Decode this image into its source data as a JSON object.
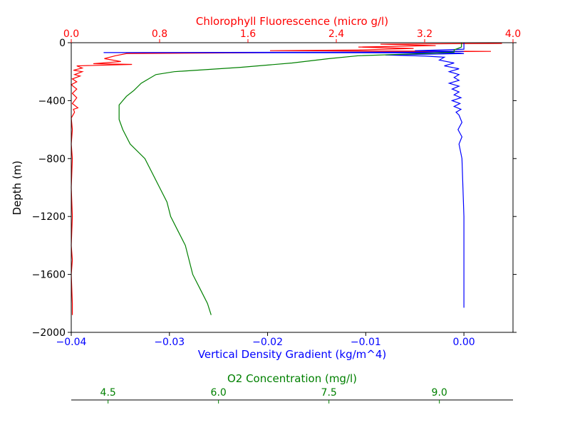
{
  "chart_data": {
    "type": "line",
    "y_axis": {
      "label": "Depth (m)",
      "ylim": [
        -2000,
        0
      ],
      "ticks": [
        0,
        -400,
        -800,
        -1200,
        -1600,
        -2000
      ],
      "tick_labels": [
        "0",
        "−400",
        "−800",
        "−1200",
        "−1600",
        "−2000"
      ]
    },
    "x_axes": [
      {
        "id": "density",
        "position": "bottom",
        "label": "Vertical Density Gradient (kg/m^4)",
        "color": "#0000ff",
        "xlim": [
          -0.04,
          0.005
        ],
        "ticks": [
          -0.04,
          -0.03,
          -0.02,
          -0.01,
          0.0
        ],
        "tick_labels": [
          "−0.04",
          "−0.03",
          "−0.02",
          "−0.01",
          "0.00"
        ]
      },
      {
        "id": "chl",
        "position": "top",
        "label": "Chlorophyll Fluorescence (micro g/l)",
        "color": "#ff0000",
        "xlim": [
          0.0,
          4.0
        ],
        "ticks": [
          0.0,
          0.8,
          1.6,
          2.4,
          3.2,
          4.0
        ],
        "tick_labels": [
          "0.0",
          "0.8",
          "1.6",
          "2.4",
          "3.2",
          "4.0"
        ]
      },
      {
        "id": "o2",
        "position": "offset-bottom",
        "label": "O2 Concentration (mg/l)",
        "color": "#008000",
        "xlim": [
          4.0,
          10.0
        ],
        "ticks": [
          4.5,
          6.0,
          7.5,
          9.0
        ],
        "tick_labels": [
          "4.5",
          "6.0",
          "7.5",
          "9.0"
        ]
      }
    ],
    "series": [
      {
        "axis": "chl",
        "color": "#ff0000",
        "points": [
          [
            3.9,
            -5
          ],
          [
            2.8,
            -10
          ],
          [
            3.3,
            -20
          ],
          [
            2.6,
            -30
          ],
          [
            3.1,
            -40
          ],
          [
            2.6,
            -50
          ],
          [
            1.8,
            -55
          ],
          [
            3.8,
            -60
          ],
          [
            0.5,
            -75
          ],
          [
            0.4,
            -90
          ],
          [
            0.3,
            -110
          ],
          [
            0.45,
            -130
          ],
          [
            0.2,
            -145
          ],
          [
            0.55,
            -150
          ],
          [
            0.05,
            -160
          ],
          [
            0.1,
            -175
          ],
          [
            0.02,
            -190
          ],
          [
            0.1,
            -200
          ],
          [
            0.03,
            -220
          ],
          [
            0.08,
            -230
          ],
          [
            0.01,
            -250
          ],
          [
            0.05,
            -270
          ],
          [
            0.0,
            -290
          ],
          [
            0.05,
            -320
          ],
          [
            0.01,
            -350
          ],
          [
            0.05,
            -380
          ],
          [
            0.01,
            -420
          ],
          [
            0.06,
            -450
          ],
          [
            0.02,
            -460
          ],
          [
            0.03,
            -480
          ],
          [
            0.0,
            -520
          ],
          [
            0.01,
            -600
          ],
          [
            0.0,
            -700
          ],
          [
            0.01,
            -800
          ],
          [
            0.0,
            -1000
          ],
          [
            0.01,
            -1200
          ],
          [
            0.0,
            -1400
          ],
          [
            0.01,
            -1500
          ],
          [
            0.0,
            -1600
          ],
          [
            0.01,
            -1800
          ],
          [
            0.01,
            -1880
          ]
        ]
      },
      {
        "axis": "density",
        "color": "#0000ff",
        "points": [
          [
            0.0,
            0
          ],
          [
            0.0,
            -30
          ],
          [
            0.0,
            -45
          ],
          [
            -0.005,
            -55
          ],
          [
            -0.0,
            -60
          ],
          [
            -0.004,
            -65
          ],
          [
            -0.0367,
            -68
          ],
          [
            -0.006,
            -70
          ],
          [
            -0.0005,
            -72
          ],
          [
            -0.0,
            -75
          ],
          [
            -0.008,
            -85
          ],
          [
            -0.004,
            -92
          ],
          [
            -0.002,
            -100
          ],
          [
            -0.0025,
            -120
          ],
          [
            -0.001,
            -140
          ],
          [
            -0.002,
            -160
          ],
          [
            -0.0005,
            -180
          ],
          [
            -0.0015,
            -200
          ],
          [
            -0.0005,
            -220
          ],
          [
            -0.001,
            -240
          ],
          [
            -0.0005,
            -260
          ],
          [
            -0.0015,
            -280
          ],
          [
            -0.0005,
            -300
          ],
          [
            -0.0012,
            -320
          ],
          [
            -0.0005,
            -340
          ],
          [
            -0.001,
            -360
          ],
          [
            -0.0003,
            -380
          ],
          [
            -0.0012,
            -400
          ],
          [
            -0.0004,
            -420
          ],
          [
            -0.001,
            -440
          ],
          [
            -0.0003,
            -460
          ],
          [
            -0.0008,
            -480
          ],
          [
            -0.0005,
            -500
          ],
          [
            -0.0002,
            -550
          ],
          [
            -0.0006,
            -600
          ],
          [
            -0.0002,
            -650
          ],
          [
            -0.0005,
            -700
          ],
          [
            -0.0002,
            -800
          ],
          [
            -0.0001,
            -1000
          ],
          [
            0.0,
            -1200
          ],
          [
            0.0,
            -1500
          ],
          [
            0.0,
            -1800
          ],
          [
            0.0,
            -1830
          ]
        ]
      },
      {
        "axis": "o2",
        "color": "#008000",
        "points": [
          [
            9.3,
            0
          ],
          [
            9.3,
            -30
          ],
          [
            9.2,
            -50
          ],
          [
            9.2,
            -65
          ],
          [
            8.8,
            -75
          ],
          [
            7.9,
            -90
          ],
          [
            7.5,
            -110
          ],
          [
            7.0,
            -140
          ],
          [
            6.3,
            -170
          ],
          [
            5.4,
            -200
          ],
          [
            5.15,
            -220
          ],
          [
            5.05,
            -250
          ],
          [
            4.95,
            -280
          ],
          [
            4.85,
            -330
          ],
          [
            4.75,
            -370
          ],
          [
            4.7,
            -400
          ],
          [
            4.65,
            -430
          ],
          [
            4.65,
            -480
          ],
          [
            4.65,
            -530
          ],
          [
            4.7,
            -600
          ],
          [
            4.8,
            -700
          ],
          [
            5.0,
            -800
          ],
          [
            5.1,
            -900
          ],
          [
            5.2,
            -1000
          ],
          [
            5.3,
            -1100
          ],
          [
            5.35,
            -1200
          ],
          [
            5.45,
            -1300
          ],
          [
            5.55,
            -1400
          ],
          [
            5.6,
            -1500
          ],
          [
            5.65,
            -1600
          ],
          [
            5.75,
            -1700
          ],
          [
            5.85,
            -1800
          ],
          [
            5.9,
            -1880
          ]
        ]
      }
    ]
  }
}
